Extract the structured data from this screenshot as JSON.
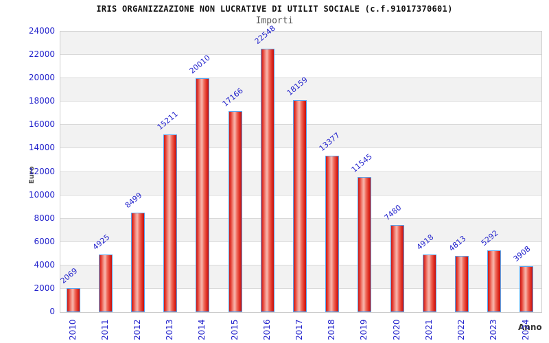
{
  "chart_data": {
    "type": "bar",
    "title": "IRIS ORGANIZZAZIONE NON LUCRATIVE DI UTILIT SOCIALE (c.f.91017370601)",
    "subtitle": "Importi",
    "xlabel": "Anno",
    "ylabel": "Euro",
    "categories": [
      "2010",
      "2011",
      "2012",
      "2013",
      "2014",
      "2015",
      "2016",
      "2017",
      "2018",
      "2019",
      "2020",
      "2021",
      "2022",
      "2023",
      "2024"
    ],
    "values": [
      2069,
      4925,
      8499,
      15211,
      20010,
      17166,
      22548,
      18159,
      13377,
      11545,
      7480,
      4918,
      4813,
      5292,
      3908
    ],
    "bar_value_labels": [
      "2069",
      "4925",
      "8499",
      "15211",
      "20010",
      "17166",
      "22548",
      "18159",
      "13377",
      "11545",
      "7480",
      "4918",
      "4813",
      "5292",
      "3908"
    ],
    "ylim": [
      0,
      24000
    ],
    "ytick_step": 2000,
    "y_ticks": [
      0,
      2000,
      4000,
      6000,
      8000,
      10000,
      12000,
      14000,
      16000,
      18000,
      20000,
      22000,
      24000
    ],
    "grid": "horizontal-bands-alternating",
    "legend": "none",
    "colors": {
      "bar_fill_edge": "#c61a1a",
      "bar_fill_mid": "#f8b7ae",
      "bar_border": "#58a6f0",
      "value_label": "#2222cc",
      "tick_label": "#2222cc",
      "band_gray": "#f2f2f2",
      "band_white": "#ffffff",
      "gridline": "#d9d9d9",
      "plot_border": "#cccccc",
      "title_color": "#111111",
      "subtitle_color": "#555555",
      "axis_title_color": "#444444"
    }
  }
}
